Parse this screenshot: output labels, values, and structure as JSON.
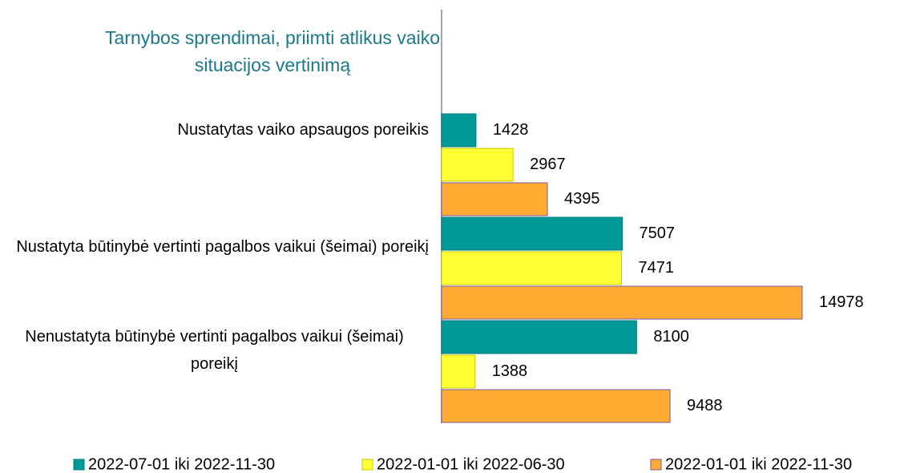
{
  "chart_data": {
    "type": "barh",
    "title": "Tarnybos sprendimai, priimti atlikus vaiko situacijos vertinimą",
    "categories": [
      "Nustatytas vaiko apsaugos poreikis",
      "Nustatyta būtinybė vertinti pagalbos vaikui (šeimai) poreikį",
      "Nenustatyta būtinybė vertinti pagalbos vaikui (šeimai) poreikį"
    ],
    "series": [
      {
        "name": "2022-07-01 iki 2022-11-30",
        "color": "#009999",
        "edgecolor": "#007a7a",
        "values": [
          1428,
          7507,
          8100
        ]
      },
      {
        "name": "2022-01-01 iki 2022-06-30",
        "color": "#ffff33",
        "edgecolor": "#c8c800",
        "values": [
          2967,
          7471,
          1388
        ]
      },
      {
        "name": "2022-01-01 iki 2022-11-30",
        "color": "#ffaa33",
        "edgecolor": "#7a5aa0",
        "values": [
          4395,
          14978,
          9488
        ]
      }
    ],
    "legend": "bottom"
  }
}
